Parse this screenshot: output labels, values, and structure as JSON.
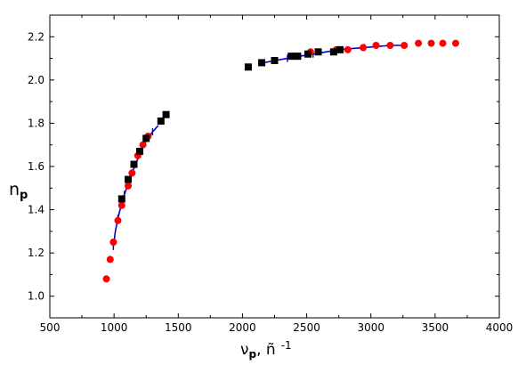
{
  "chart_data": {
    "type": "scatter",
    "title": "",
    "xlabel": {
      "main": "ν",
      "sub": "p",
      "tail": ", ñ",
      "sup": "-1"
    },
    "ylabel": {
      "main": "n",
      "sub": "p"
    },
    "xlim": [
      500,
      4000
    ],
    "ylim": [
      0.9,
      2.3
    ],
    "x_ticks": [
      500,
      1000,
      1500,
      2000,
      2500,
      3000,
      3500,
      4000
    ],
    "y_ticks": [
      1.0,
      1.2,
      1.4,
      1.6,
      1.8,
      2.0,
      2.2
    ],
    "y_tick_labels": [
      "1.0",
      "1.2",
      "1.4",
      "1.6",
      "1.8",
      "2.0",
      "2.2"
    ],
    "grid": false,
    "series": [
      {
        "marker": "circle",
        "color": "#ff0000",
        "points": [
          [
            940,
            1.08
          ],
          [
            970,
            1.17
          ],
          [
            995,
            1.25
          ],
          [
            1030,
            1.35
          ],
          [
            1060,
            1.42
          ],
          [
            1110,
            1.51
          ],
          [
            1140,
            1.57
          ],
          [
            1185,
            1.65
          ],
          [
            1225,
            1.7
          ],
          [
            1265,
            1.74
          ],
          [
            2420,
            2.11
          ],
          [
            2530,
            2.13
          ],
          [
            2730,
            2.14
          ],
          [
            2820,
            2.14
          ],
          [
            2940,
            2.15
          ],
          [
            3040,
            2.16
          ],
          [
            3150,
            2.16
          ],
          [
            3260,
            2.16
          ],
          [
            3370,
            2.17
          ],
          [
            3470,
            2.17
          ],
          [
            3560,
            2.17
          ],
          [
            3660,
            2.17
          ]
        ]
      },
      {
        "marker": "square",
        "color": "#000000",
        "points": [
          [
            1060,
            1.45
          ],
          [
            1110,
            1.54
          ],
          [
            1155,
            1.61
          ],
          [
            1200,
            1.67
          ],
          [
            1250,
            1.73
          ],
          [
            1365,
            1.81
          ],
          [
            1405,
            1.84
          ],
          [
            2045,
            2.06
          ],
          [
            2150,
            2.08
          ],
          [
            2250,
            2.09
          ],
          [
            2380,
            2.11
          ],
          [
            2430,
            2.11
          ],
          [
            2510,
            2.12
          ],
          [
            2590,
            2.13
          ],
          [
            2710,
            2.13
          ],
          [
            2760,
            2.14
          ]
        ]
      },
      {
        "type": "line",
        "color": "#0000cc",
        "points": [
          [
            995,
            1.23
          ],
          [
            1010,
            1.3
          ],
          [
            1030,
            1.36
          ],
          [
            1055,
            1.42
          ],
          [
            1080,
            1.47
          ],
          [
            1110,
            1.52
          ],
          [
            1140,
            1.57
          ],
          [
            1175,
            1.62
          ],
          [
            1210,
            1.67
          ],
          [
            1250,
            1.72
          ],
          [
            1300,
            1.76
          ],
          [
            1345,
            1.79
          ]
        ]
      },
      {
        "type": "line",
        "color": "#0000cc",
        "points": [
          [
            2170,
            2.08
          ],
          [
            2250,
            2.09
          ],
          [
            2350,
            2.1
          ],
          [
            2450,
            2.11
          ],
          [
            2550,
            2.12
          ],
          [
            2650,
            2.13
          ],
          [
            2750,
            2.14
          ],
          [
            2850,
            2.145
          ],
          [
            2950,
            2.15
          ],
          [
            3050,
            2.155
          ],
          [
            3150,
            2.16
          ],
          [
            3270,
            2.16
          ]
        ]
      }
    ]
  }
}
